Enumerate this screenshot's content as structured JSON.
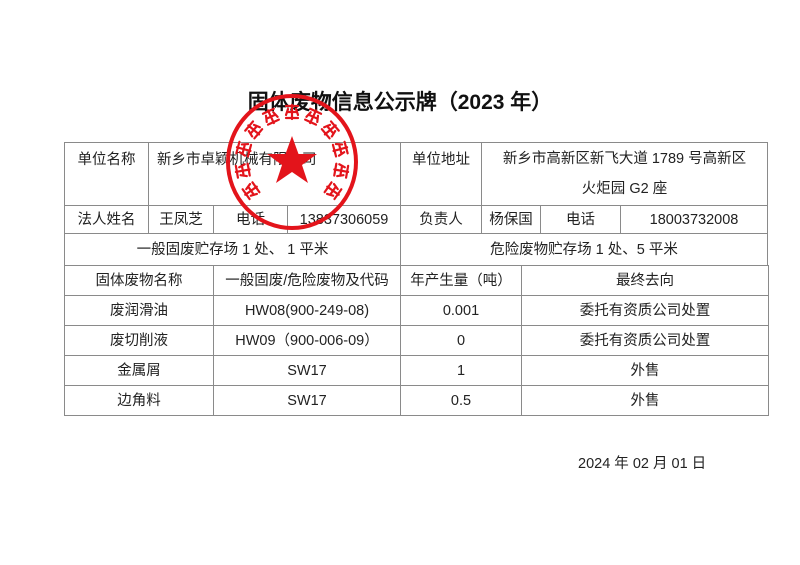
{
  "title": "固体废物信息公示牌（2023 年）",
  "unit": {
    "name_label": "单位名称",
    "name": "新乡市卓颖机械有限公司",
    "address_label": "单位地址",
    "address_line1": "新乡市高新区新飞大道 1789 号高新区",
    "address_line2": "火炬园 G2 座"
  },
  "contacts": {
    "legal_label": "法人姓名",
    "legal_name": "王凤芝",
    "phone_label": "电话",
    "legal_phone": "13837306059",
    "manager_label": "负责人",
    "manager_name": "杨保国",
    "manager_phone_label": "电话",
    "manager_phone": "18003732008"
  },
  "storage": {
    "general": "一般固废贮存场 1 处、 1 平米",
    "hazardous": "危险废物贮存场 1 处、5 平米"
  },
  "waste_table": {
    "headers": [
      "固体废物名称",
      "一般固废/危险废物及代码",
      "年产生量（吨）",
      "最终去向"
    ],
    "rows": [
      [
        "废润滑油",
        "HW08(900-249-08)",
        "0.001",
        "委托有资质公司处置"
      ],
      [
        "废切削液",
        "HW09（900-006-09）",
        "0",
        "委托有资质公司处置"
      ],
      [
        "金属屑",
        "SW17",
        "1",
        "外售"
      ],
      [
        "边角料",
        "SW17",
        "0.5",
        "外售"
      ]
    ]
  },
  "date": "2024 年  02  月  01  日",
  "stamp": {
    "text": "新乡市卓颖机械有限公司",
    "color": "#e3141b"
  }
}
